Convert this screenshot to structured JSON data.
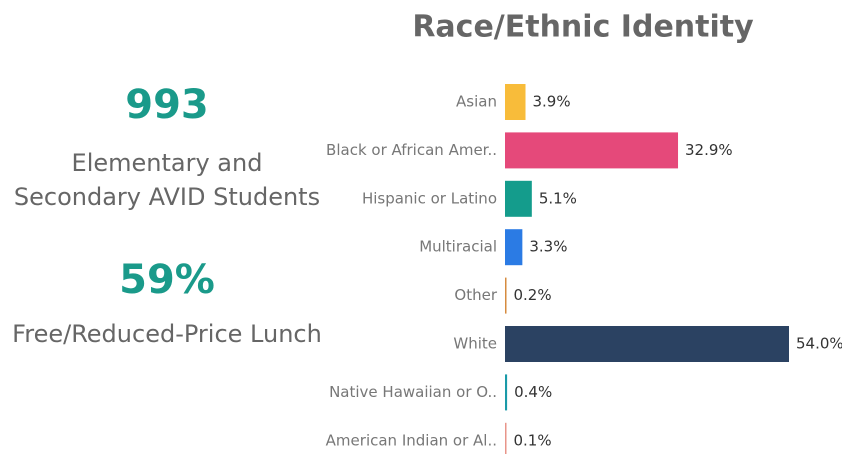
{
  "kpis": [
    {
      "value": 993,
      "label": "Elementary and Secondary AVID Students"
    },
    {
      "value": 59,
      "value_label": "59%",
      "label": "Free/Reduced-Price Lunch"
    }
  ],
  "chart_data": {
    "type": "bar",
    "orientation": "horizontal",
    "title": "Race/Ethnic Identity",
    "categories": [
      "Asian",
      "Black or African Amer..",
      "Hispanic or Latino",
      "Multiracial",
      "Other",
      "White",
      "Native Hawaiian or O..",
      "American Indian or Al.."
    ],
    "values": [
      3.9,
      32.9,
      5.1,
      3.3,
      0.2,
      54.0,
      0.4,
      0.1
    ],
    "value_labels": [
      "3.9%",
      "32.9%",
      "5.1%",
      "3.3%",
      "0.2%",
      "54.0%",
      "0.4%",
      "0.1%"
    ],
    "colors": [
      "#f8bc3a",
      "#e5497a",
      "#149c8c",
      "#2b7be4",
      "#d68b3f",
      "#2b4262",
      "#1a9aa8",
      "#e8958a"
    ],
    "grid": false
  }
}
